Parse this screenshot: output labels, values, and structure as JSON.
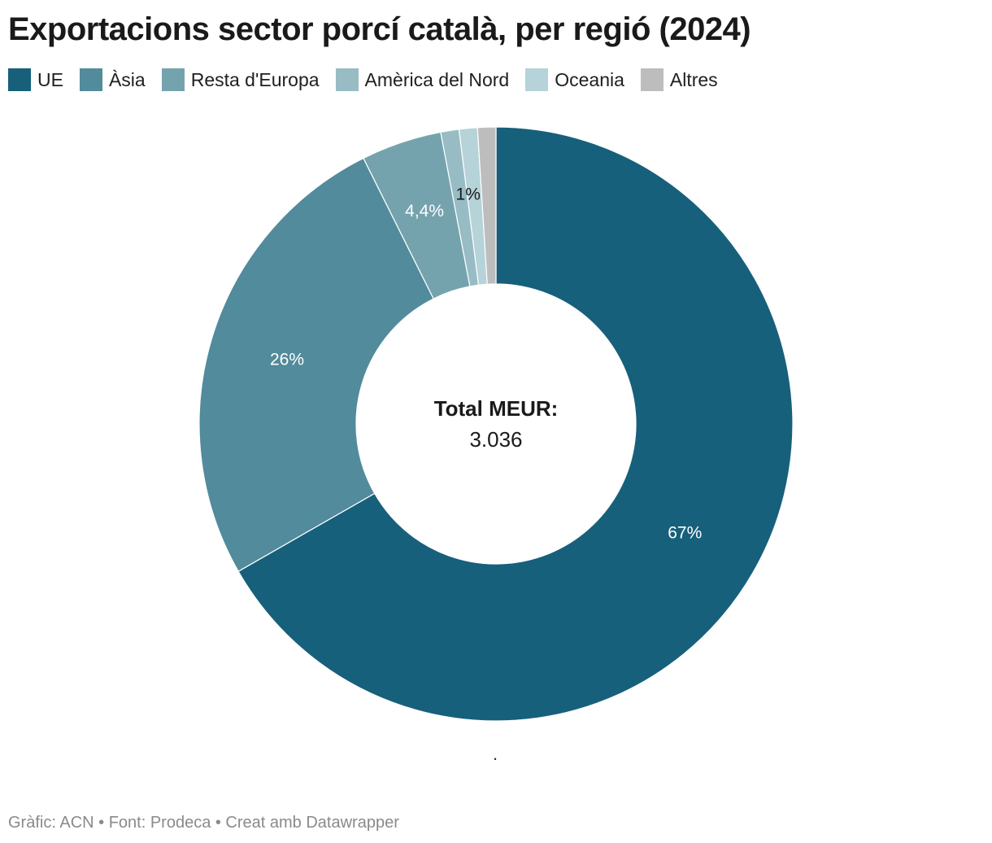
{
  "chart_data": {
    "type": "pie",
    "variant": "donut",
    "title": "Exportacions sector porcí català, per regió (2024)",
    "unit": "%",
    "categories": [
      "UE",
      "Àsia",
      "Resta d'Europa",
      "Amèrica del Nord",
      "Oceania",
      "Altres"
    ],
    "values": [
      67,
      26,
      4.4,
      1,
      1,
      1
    ],
    "data_labels": [
      "67%",
      "26%",
      "4,4%",
      "1%",
      "",
      ""
    ],
    "colors": [
      "#17607b",
      "#528b9b",
      "#74a3ae",
      "#97bcc4",
      "#b5d3d8",
      "#bdbdbd"
    ],
    "center_label": {
      "title": "Total MEUR:",
      "value": "3.036"
    },
    "legend_position": "top-left"
  },
  "note": ".",
  "footer": "Gràfic: ACN • Font: Prodeca • Creat amb Datawrapper"
}
